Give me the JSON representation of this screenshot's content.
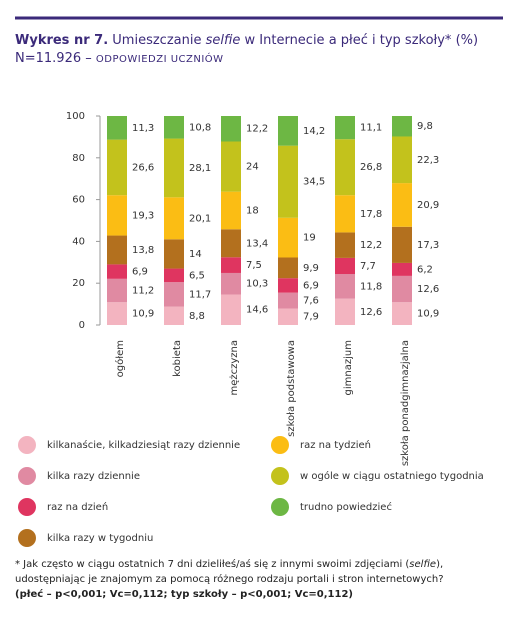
{
  "header": {
    "number": "Wykres nr 7.",
    "text_before": "Umieszczanie",
    "italic": "selfie",
    "text_after": "w Internecie a płeć i typ szkoły* (%)",
    "n": "N=11.926 –",
    "note": "ODPOWIEDZI UCZNIÓW"
  },
  "chart_data": {
    "type": "stacked_bar",
    "categories": [
      "ogółem",
      "kobieta",
      "mężczyzna",
      "szkoła podstawowa",
      "gimnazjum",
      "szkoła ponadgimnazjalna"
    ],
    "ylim": [
      0,
      100
    ],
    "yticks": [
      0,
      20,
      40,
      60,
      80,
      100
    ],
    "series": [
      {
        "name": "kilkanaście, kilkadziesiąt razy dziennie",
        "color": "#f3b4c0",
        "values": [
          10.9,
          8.8,
          14.6,
          7.9,
          12.6,
          10.9
        ],
        "value_labels": [
          "10,9",
          "8,8",
          "14,6",
          "7,9",
          "12,6",
          "10,9"
        ]
      },
      {
        "name": "kilka razy dziennie",
        "color": "#e08aa2",
        "values": [
          11.2,
          11.7,
          10.3,
          7.6,
          11.8,
          12.6
        ],
        "value_labels": [
          "11,2",
          "11,7",
          "10,3",
          "7,6",
          "11,8",
          "12,6"
        ]
      },
      {
        "name": "raz na dzień",
        "color": "#df3560",
        "values": [
          6.9,
          6.5,
          7.5,
          6.9,
          7.7,
          6.2
        ],
        "value_labels": [
          "6,9",
          "6,5",
          "7,5",
          "6,9",
          "7,7",
          "6,2"
        ]
      },
      {
        "name": "kilka razy w tygodniu",
        "color": "#b3701e",
        "values": [
          13.8,
          14,
          13.4,
          9.9,
          12.2,
          17.3
        ],
        "value_labels": [
          "13,8",
          "14",
          "13,4",
          "9,9",
          "12,2",
          "17,3"
        ]
      },
      {
        "name": "raz na tydzień",
        "color": "#fbbd14",
        "values": [
          19.3,
          20.1,
          18,
          19,
          17.8,
          20.9
        ],
        "value_labels": [
          "19,3",
          "20,1",
          "18",
          "19",
          "17,8",
          "20,9"
        ]
      },
      {
        "name": "w ogóle w ciągu ostatniego tygodnia",
        "color": "#c3c21c",
        "values": [
          26.6,
          28.1,
          24,
          34.5,
          26.8,
          22.3
        ],
        "value_labels": [
          "26,6",
          "28,1",
          "24",
          "34,5",
          "26,8",
          "22,3"
        ]
      },
      {
        "name": "trudno powiedzieć",
        "color": "#6db744",
        "values": [
          11.3,
          10.8,
          12.2,
          14.2,
          11.1,
          9.8
        ],
        "value_labels": [
          "11,3",
          "10,8",
          "12,2",
          "14,2",
          "11,1",
          "9,8"
        ]
      }
    ]
  },
  "footnote": {
    "before": "* Jak często w ciągu ostatnich 7 dni dzieliłeś/aś się z innymi swoimi zdjęciami (",
    "italic": "selfie",
    "after": "), udostępniając je znajomym za pomocą różnego rodzaju portali i stron internetowych?",
    "stats": "(płeć – p<0,001; Vc=0,112; typ szkoły – p<0,001; Vc=0,112)"
  }
}
